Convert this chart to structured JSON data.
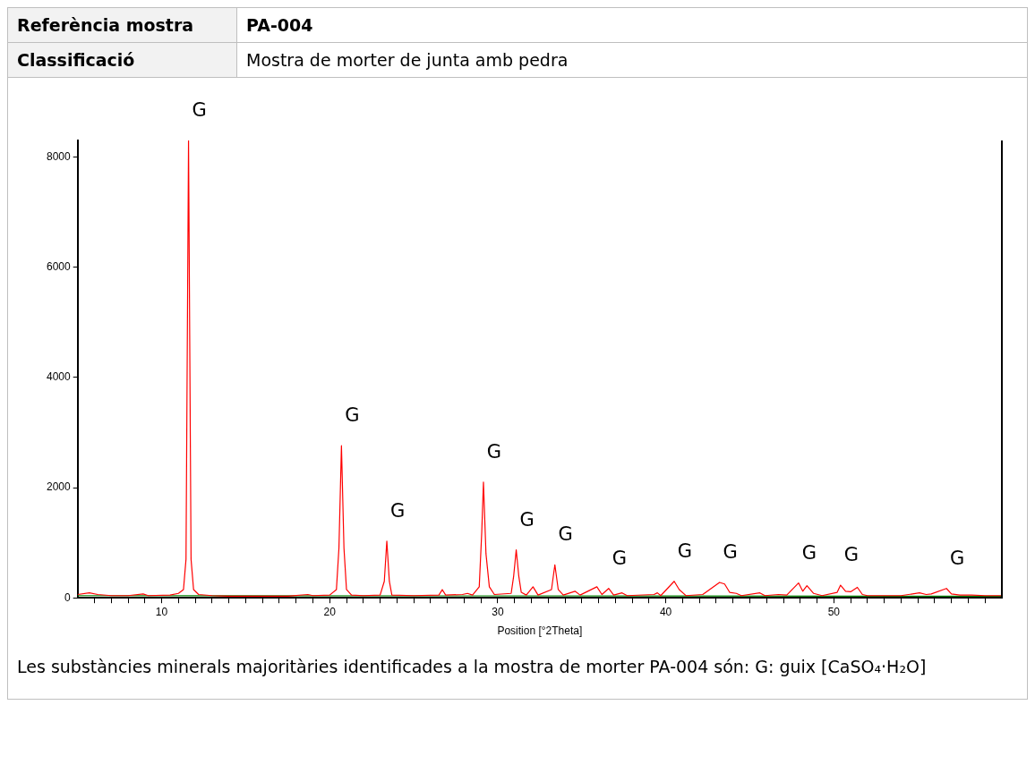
{
  "chart_data": {
    "type": "line",
    "xlabel": "Position [°2Theta]",
    "annotations": [
      "Referència mostra",
      "PA-004",
      "Classificació",
      "Mostra de morter de junta amb pedra",
      {
        "text": "G",
        "x": 11.6,
        "y": 8300
      },
      {
        "text": "G",
        "x": 20.7,
        "y": 2760
      },
      {
        "text": "G",
        "x": 23.4,
        "y": 1030
      },
      {
        "text": "G",
        "x": 29.15,
        "y": 2100
      },
      {
        "text": "G",
        "x": 31.1,
        "y": 870
      },
      {
        "text": "G",
        "x": 33.4,
        "y": 600
      },
      {
        "text": "G",
        "x": 36.6,
        "y": 170
      },
      {
        "text": "G",
        "x": 40.5,
        "y": 300
      },
      {
        "text": "G",
        "x": 43.2,
        "y": 280
      },
      {
        "text": "G",
        "x": 47.9,
        "y": 270
      },
      {
        "text": "G",
        "x": 50.4,
        "y": 230
      },
      {
        "text": "G",
        "x": 56.7,
        "y": 170
      },
      "Les substàncies minerals majoritàries identificades a la mostra de morter PA-004 són: G: guix [CaSO₄·H₂O]"
    ],
    "series": [
      {
        "color": "#ff0000",
        "x": [
          5.0,
          5.7,
          6.2,
          7,
          8,
          8.9,
          9.2,
          10.5,
          11.0,
          11.3,
          11.45,
          11.6,
          11.75,
          11.9,
          12.2,
          13,
          14,
          15,
          16,
          17.5,
          18.7,
          19,
          20.0,
          20.4,
          20.55,
          20.7,
          20.85,
          21.0,
          21.3,
          22,
          23.0,
          23.25,
          23.4,
          23.55,
          23.7,
          25,
          26.5,
          26.7,
          26.9,
          27.9,
          28.2,
          28.5,
          28.9,
          29.05,
          29.15,
          29.3,
          29.5,
          29.8,
          30.8,
          30.95,
          31.1,
          31.25,
          31.4,
          31.7,
          32.1,
          32.4,
          33.2,
          33.4,
          33.6,
          33.9,
          34.6,
          34.9,
          35.9,
          36.2,
          36.6,
          36.9,
          37.4,
          37.7,
          39.3,
          39.5,
          39.7,
          40.5,
          40.8,
          41.2,
          42.2,
          43.2,
          43.5,
          43.8,
          44.2,
          44.5,
          45.6,
          45.9,
          46.7,
          47.2,
          47.9,
          48.15,
          48.4,
          48.8,
          49.3,
          50.2,
          50.4,
          50.7,
          51.0,
          51.4,
          51.7,
          52,
          54,
          55.1,
          55.5,
          55.8,
          56.7,
          57.0,
          57.5,
          58.2,
          59,
          60
        ],
        "values": [
          60,
          90,
          60,
          40,
          40,
          70,
          40,
          50,
          80,
          150,
          700,
          8300,
          700,
          150,
          60,
          40,
          30,
          30,
          30,
          30,
          60,
          40,
          50,
          150,
          900,
          2760,
          900,
          150,
          50,
          40,
          50,
          300,
          1030,
          300,
          50,
          40,
          50,
          150,
          50,
          60,
          80,
          50,
          200,
          1200,
          2100,
          800,
          200,
          60,
          80,
          400,
          870,
          400,
          100,
          50,
          200,
          50,
          150,
          600,
          150,
          50,
          120,
          50,
          200,
          60,
          170,
          50,
          90,
          40,
          60,
          90,
          40,
          300,
          150,
          40,
          60,
          280,
          250,
          100,
          80,
          40,
          90,
          40,
          60,
          50,
          270,
          120,
          220,
          80,
          40,
          100,
          230,
          120,
          110,
          190,
          60,
          40,
          40,
          90,
          60,
          70,
          170,
          70,
          50,
          50,
          40,
          40
        ]
      },
      {
        "color": "#008000",
        "x": [
          5,
          60
        ],
        "values": [
          40,
          30
        ]
      }
    ],
    "xlim": [
      5,
      60
    ],
    "ylim": [
      0,
      8300
    ],
    "xticks": [
      {
        "value": 6,
        "label": null
      },
      {
        "value": 7,
        "label": null
      },
      {
        "value": 8,
        "label": null
      },
      {
        "value": 9,
        "label": null
      },
      10,
      {
        "value": 11,
        "label": null
      },
      {
        "value": 12,
        "label": null
      },
      {
        "value": 13,
        "label": null
      },
      {
        "value": 14,
        "label": null
      },
      {
        "value": 15,
        "label": null
      },
      {
        "value": 16,
        "label": null
      },
      {
        "value": 17,
        "label": null
      },
      {
        "value": 18,
        "label": null
      },
      {
        "value": 19,
        "label": null
      },
      20,
      {
        "value": 21,
        "label": null
      },
      {
        "value": 22,
        "label": null
      },
      {
        "value": 23,
        "label": null
      },
      {
        "value": 24,
        "label": null
      },
      {
        "value": 25,
        "label": null
      },
      {
        "value": 26,
        "label": null
      },
      {
        "value": 27,
        "label": null
      },
      {
        "value": 28,
        "label": null
      },
      {
        "value": 29,
        "label": null
      },
      30,
      {
        "value": 31,
        "label": null
      },
      {
        "value": 32,
        "label": null
      },
      {
        "value": 33,
        "label": null
      },
      {
        "value": 34,
        "label": null
      },
      {
        "value": 35,
        "label": null
      },
      {
        "value": 36,
        "label": null
      },
      {
        "value": 37,
        "label": null
      },
      {
        "value": 38,
        "label": null
      },
      {
        "value": 39,
        "label": null
      },
      40,
      {
        "value": 41,
        "label": null
      },
      {
        "value": 42,
        "label": null
      },
      {
        "value": 43,
        "label": null
      },
      {
        "value": 44,
        "label": null
      },
      {
        "value": 45,
        "label": null
      },
      {
        "value": 46,
        "label": null
      },
      {
        "value": 47,
        "label": null
      },
      {
        "value": 48,
        "label": null
      },
      {
        "value": 49,
        "label": null
      },
      50,
      {
        "value": 51,
        "label": null
      },
      {
        "value": 52,
        "label": null
      },
      {
        "value": 53,
        "label": null
      },
      {
        "value": 54,
        "label": null
      },
      {
        "value": 55,
        "label": null
      },
      {
        "value": 56,
        "label": null
      },
      {
        "value": 57,
        "label": null
      },
      {
        "value": 58,
        "label": null
      },
      {
        "value": 59,
        "label": null
      }
    ],
    "yticks": [
      0,
      2000,
      4000,
      6000,
      8000
    ],
    "grid": false,
    "legend": false,
    "marker": "none",
    "line_style": "solid"
  }
}
